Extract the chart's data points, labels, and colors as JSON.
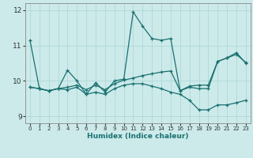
{
  "xlabel": "Humidex (Indice chaleur)",
  "background_color": "#cceaea",
  "line_color": "#1a7070",
  "grid_color": "#aad4d4",
  "xlim": [
    -0.5,
    23.5
  ],
  "ylim": [
    8.8,
    12.2
  ],
  "yticks": [
    9,
    10,
    11,
    12
  ],
  "xticks": [
    0,
    1,
    2,
    3,
    4,
    5,
    6,
    7,
    8,
    9,
    10,
    11,
    12,
    13,
    14,
    15,
    16,
    17,
    18,
    19,
    20,
    21,
    22,
    23
  ],
  "line1_y": [
    11.15,
    9.78,
    9.72,
    9.78,
    10.3,
    10.0,
    9.62,
    9.95,
    9.68,
    10.0,
    10.05,
    11.95,
    11.55,
    11.2,
    11.15,
    11.2,
    9.72,
    9.82,
    9.78,
    9.78,
    10.55,
    10.65,
    10.8,
    10.5
  ],
  "line2_y": [
    9.82,
    9.78,
    9.72,
    9.78,
    9.82,
    9.88,
    9.75,
    9.88,
    9.75,
    9.92,
    10.02,
    10.08,
    10.15,
    10.2,
    10.25,
    10.28,
    9.72,
    9.85,
    9.88,
    9.88,
    10.55,
    10.65,
    10.75,
    10.52
  ],
  "line3_y": [
    9.82,
    9.78,
    9.72,
    9.78,
    9.75,
    9.82,
    9.62,
    9.68,
    9.62,
    9.78,
    9.88,
    9.92,
    9.92,
    9.85,
    9.78,
    9.68,
    9.62,
    9.45,
    9.18,
    9.18,
    9.32,
    9.32,
    9.38,
    9.45
  ]
}
